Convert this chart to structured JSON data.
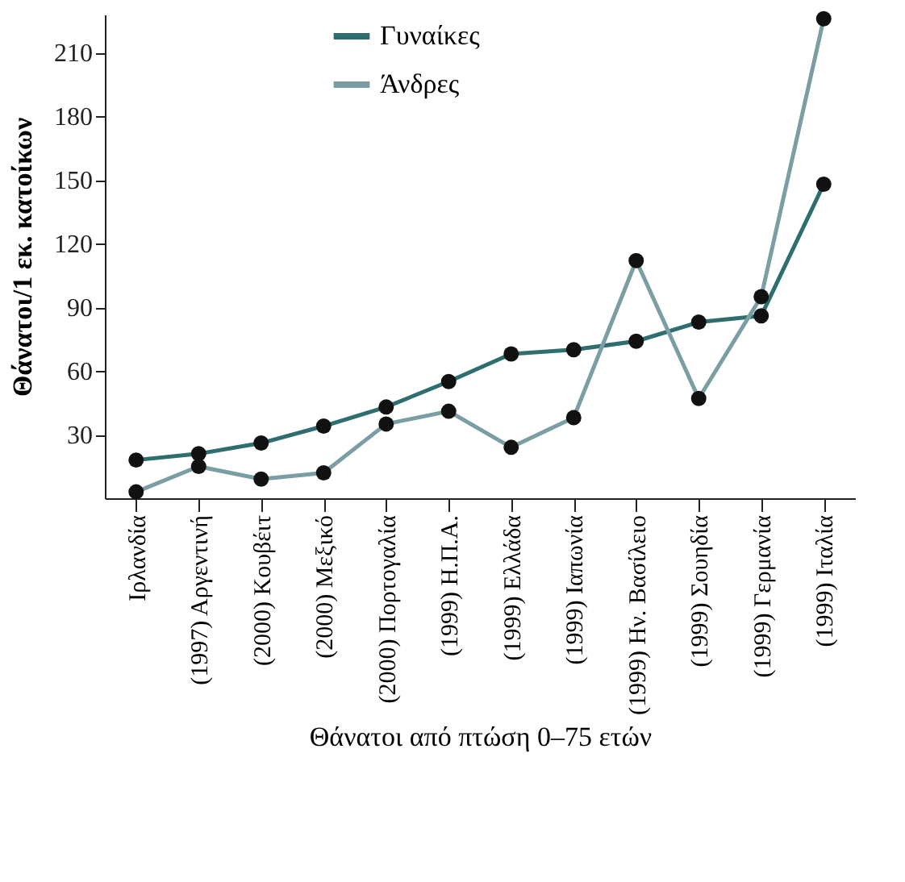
{
  "chart_data": {
    "type": "line",
    "xlabel": "Θάνατοι από πτώση 0–75 ετών",
    "ylabel": "Θάνατοι/1 εκ. κατοίκων",
    "categories": [
      "Ιρλανδία",
      "(1997) Αργεντινή",
      "(2000) Κουβέιτ",
      "(2000) Μεξικό",
      "(2000) Πορτογαλία",
      "(1999) Η.Π.Α.",
      "(1999) Ελλάδα",
      "(1999) Ιαπωνία",
      "(1999) Ην. Βασίλειο",
      "(1999) Σουηδία",
      "(1999) Γερμανία",
      "(1999) Ιταλία"
    ],
    "series": [
      {
        "name": "Γυναίκες",
        "color": "#2f6e6e",
        "values": [
          18,
          21,
          26,
          34,
          43,
          55,
          68,
          70,
          74,
          83,
          86,
          148
        ]
      },
      {
        "name": "Άνδρες",
        "color": "#7a9ea3",
        "values": [
          3,
          15,
          9,
          12,
          35,
          41,
          24,
          38,
          112,
          47,
          95,
          226
        ]
      }
    ],
    "ylim": [
      0,
      228
    ],
    "yticks": [
      30,
      60,
      90,
      120,
      150,
      180,
      210
    ],
    "grid": false,
    "legend": "top",
    "marker": "circle",
    "line_style": "solid"
  }
}
